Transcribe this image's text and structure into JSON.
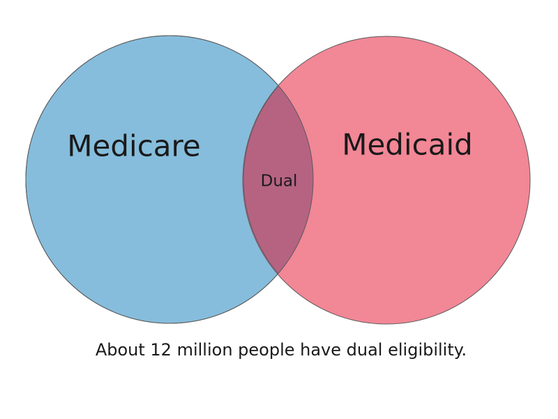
{
  "sets": [
    {
      "label": "Medicare"
    },
    {
      "label": "Medicaid"
    }
  ],
  "intersection": {
    "label": "Dual"
  },
  "caption": "About 12 million people have dual eligibility."
}
